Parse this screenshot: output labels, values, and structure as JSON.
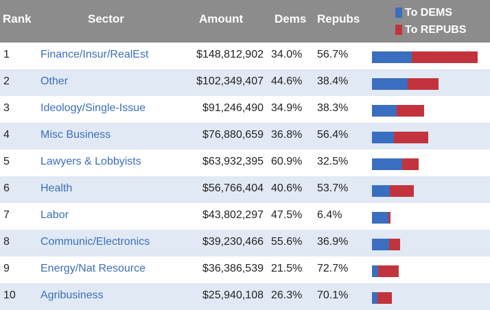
{
  "header": {
    "rank": "Rank",
    "sector": "Sector",
    "amount": "Amount",
    "dems": "Dems",
    "repubs": "Repubs"
  },
  "legend": {
    "dems_label": "To DEMS",
    "repubs_label": "To REPUBS"
  },
  "colors": {
    "dems": "#3a6ec0",
    "repubs": "#c2333d",
    "header_bg": "#8c8c8c",
    "alt_row": "#e1e9f4",
    "link": "#3b6fb8"
  },
  "rows": [
    {
      "rank": "1",
      "sector": "Finance/Insur/RealEst",
      "amount": "$148,812,902",
      "dems": "34.0%",
      "repubs": "56.7%"
    },
    {
      "rank": "2",
      "sector": "Other",
      "amount": "$102,349,407",
      "dems": "44.6%",
      "repubs": "38.4%"
    },
    {
      "rank": "3",
      "sector": "Ideology/Single-Issue",
      "amount": "$91,246,490",
      "dems": "34.9%",
      "repubs": "38.3%"
    },
    {
      "rank": "4",
      "sector": "Misc Business",
      "amount": "$76,880,659",
      "dems": "36.8%",
      "repubs": "56.4%"
    },
    {
      "rank": "5",
      "sector": "Lawyers & Lobbyists",
      "amount": "$63,932,395",
      "dems": "60.9%",
      "repubs": "32.5%"
    },
    {
      "rank": "6",
      "sector": "Health",
      "amount": "$56,766,404",
      "dems": "40.6%",
      "repubs": "53.7%"
    },
    {
      "rank": "7",
      "sector": "Labor",
      "amount": "$43,802,297",
      "dems": "47.5%",
      "repubs": "6.4%"
    },
    {
      "rank": "8",
      "sector": "Communic/Electronics",
      "amount": "$39,230,466",
      "dems": "55.6%",
      "repubs": "36.9%"
    },
    {
      "rank": "9",
      "sector": "Energy/Nat Resource",
      "amount": "$36,386,539",
      "dems": "21.5%",
      "repubs": "72.7%"
    },
    {
      "rank": "10",
      "sector": "Agribusiness",
      "amount": "$25,940,108",
      "dems": "26.3%",
      "repubs": "70.1%"
    }
  ],
  "chart_data": {
    "type": "bar",
    "stacked": true,
    "orientation": "horizontal",
    "categories": [
      "Finance/Insur/RealEst",
      "Other",
      "Ideology/Single-Issue",
      "Misc Business",
      "Lawyers & Lobbyists",
      "Health",
      "Labor",
      "Communic/Electronics",
      "Energy/Nat Resource",
      "Agribusiness"
    ],
    "series": [
      {
        "name": "To DEMS",
        "values": [
          50.6,
          45.6,
          31.8,
          28.3,
          38.9,
          23.0,
          20.8,
          21.8,
          7.8,
          6.8
        ]
      },
      {
        "name": "To REPUBS",
        "values": [
          84.4,
          39.3,
          34.9,
          43.4,
          20.8,
          30.5,
          2.8,
          14.5,
          26.5,
          18.2
        ]
      }
    ],
    "units": "millions of dollars",
    "legend_position": "top-right"
  }
}
